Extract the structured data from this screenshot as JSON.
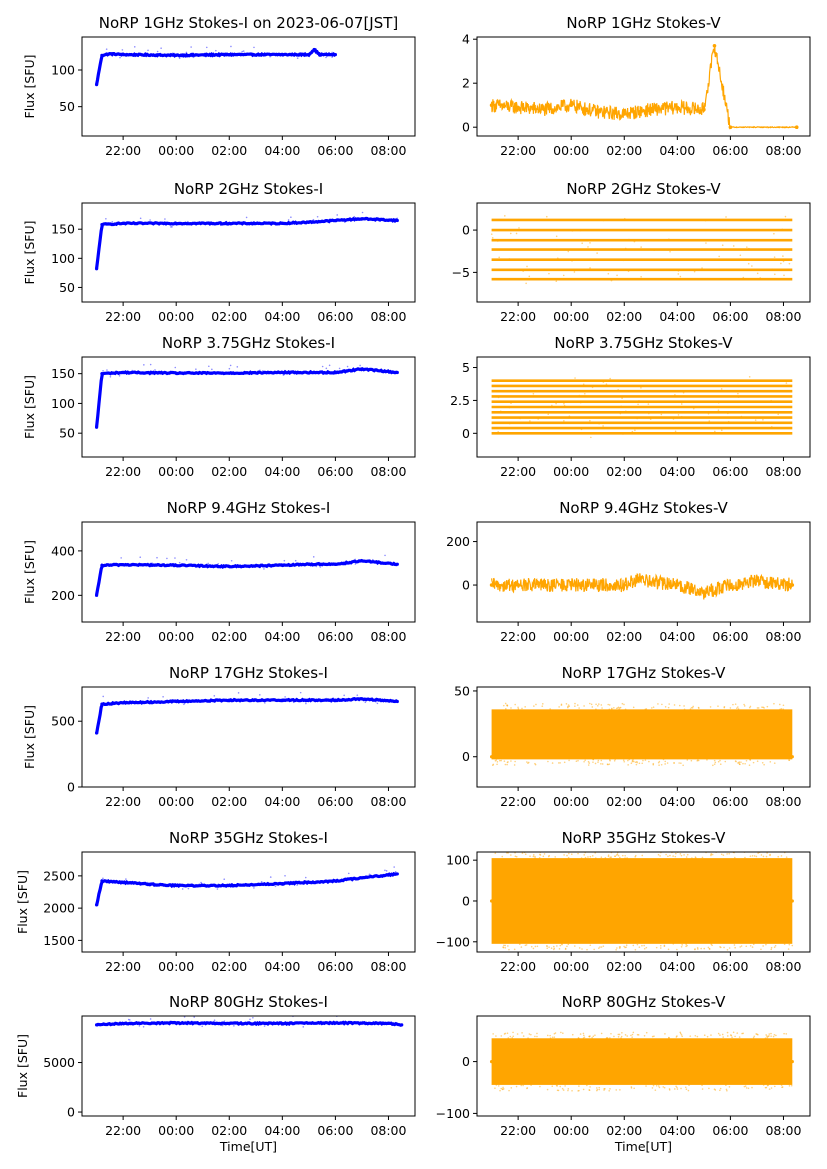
{
  "chart_data": [
    {
      "type": "line",
      "title": "NoRP 1GHz Stokes-I on 2023-06-07[JST]",
      "ylabel": "Flux [SFU]",
      "xlabel": "",
      "color": "#0000ff",
      "ylim": [
        10,
        145
      ],
      "yticks": [
        50,
        100
      ],
      "xticks": [
        "22:00",
        "00:00",
        "02:00",
        "04:00",
        "06:00",
        "08:00"
      ],
      "x": [
        "21:00",
        "21:12",
        "21:30",
        "22:00",
        "00:00",
        "02:00",
        "04:00",
        "05:00",
        "05:12",
        "05:24",
        "06:00"
      ],
      "values": [
        80,
        120,
        122,
        121,
        120,
        121,
        121,
        121,
        128,
        121,
        121
      ]
    },
    {
      "type": "scatter",
      "title": "NoRP 1GHz Stokes-V",
      "ylabel": "",
      "xlabel": "",
      "color": "#ffa500",
      "ylim": [
        -0.4,
        4.1
      ],
      "yticks": [
        0,
        2,
        4
      ],
      "xticks": [
        "22:00",
        "00:00",
        "02:00",
        "04:00",
        "06:00",
        "08:00"
      ],
      "x": [
        "21:00",
        "22:00",
        "23:00",
        "00:00",
        "01:00",
        "02:00",
        "03:00",
        "04:00",
        "05:00",
        "05:24",
        "06:00",
        "08:30"
      ],
      "values": [
        1.0,
        0.9,
        0.8,
        1.0,
        0.7,
        0.6,
        0.8,
        0.9,
        0.8,
        3.7,
        0.0,
        0.0
      ]
    },
    {
      "type": "line",
      "title": "NoRP 2GHz Stokes-I",
      "ylabel": "Flux [SFU]",
      "xlabel": "",
      "color": "#0000ff",
      "ylim": [
        25,
        195
      ],
      "yticks": [
        50,
        100,
        150
      ],
      "xticks": [
        "22:00",
        "00:00",
        "02:00",
        "04:00",
        "06:00",
        "08:00"
      ],
      "x": [
        "21:00",
        "21:12",
        "22:00",
        "00:00",
        "02:00",
        "04:00",
        "05:00",
        "06:00",
        "07:00",
        "08:20"
      ],
      "values": [
        82,
        158,
        160,
        160,
        160,
        160,
        162,
        165,
        168,
        165
      ]
    },
    {
      "type": "scatter",
      "title": "NoRP 2GHz Stokes-V",
      "ylabel": "",
      "xlabel": "",
      "color": "#ffa500",
      "ylim": [
        -8.5,
        3.2
      ],
      "yticks": [
        -5,
        0
      ],
      "xticks": [
        "22:00",
        "00:00",
        "02:00",
        "04:00",
        "06:00",
        "08:00"
      ],
      "levels": [
        1.2,
        0.0,
        -1.2,
        -2.3,
        -3.5,
        -4.7,
        -5.8
      ],
      "x": [
        "21:00",
        "08:20"
      ],
      "values": [
        1.2,
        -5.8
      ]
    },
    {
      "type": "line",
      "title": "NoRP 3.75GHz Stokes-I",
      "ylabel": "Flux [SFU]",
      "xlabel": "",
      "color": "#0000ff",
      "ylim": [
        10,
        178
      ],
      "yticks": [
        50,
        100,
        150
      ],
      "xticks": [
        "22:00",
        "00:00",
        "02:00",
        "04:00",
        "06:00",
        "08:00"
      ],
      "x": [
        "21:00",
        "21:12",
        "22:00",
        "00:00",
        "02:00",
        "04:00",
        "06:00",
        "07:00",
        "08:20"
      ],
      "values": [
        60,
        150,
        152,
        151,
        151,
        152,
        152,
        158,
        152
      ]
    },
    {
      "type": "scatter",
      "title": "NoRP 3.75GHz Stokes-V",
      "ylabel": "",
      "xlabel": "",
      "color": "#ffa500",
      "ylim": [
        -1.8,
        5.8
      ],
      "yticks": [
        0.0,
        2.5,
        5.0
      ],
      "xticks": [
        "22:00",
        "00:00",
        "02:00",
        "04:00",
        "06:00",
        "08:00"
      ],
      "levels": [
        0.0,
        0.4,
        0.8,
        1.2,
        1.6,
        2.0,
        2.4,
        2.8,
        3.2,
        3.6,
        4.0
      ],
      "x": [
        "21:00",
        "08:20"
      ],
      "values": [
        0.0,
        4.0
      ]
    },
    {
      "type": "line",
      "title": "NoRP 9.4GHz Stokes-I",
      "ylabel": "Flux [SFU]",
      "xlabel": "",
      "color": "#0000ff",
      "ylim": [
        80,
        530
      ],
      "yticks": [
        200,
        400
      ],
      "xticks": [
        "22:00",
        "00:00",
        "02:00",
        "04:00",
        "06:00",
        "08:00"
      ],
      "x": [
        "21:00",
        "21:12",
        "22:00",
        "00:00",
        "02:00",
        "04:00",
        "05:00",
        "06:00",
        "07:00",
        "08:20"
      ],
      "values": [
        200,
        335,
        338,
        335,
        330,
        335,
        340,
        340,
        355,
        340
      ]
    },
    {
      "type": "scatter",
      "title": "NoRP 9.4GHz Stokes-V",
      "ylabel": "",
      "xlabel": "",
      "color": "#ffa500",
      "ylim": [
        -170,
        290
      ],
      "yticks": [
        0,
        200
      ],
      "xticks": [
        "22:00",
        "00:00",
        "02:00",
        "04:00",
        "06:00",
        "08:00"
      ],
      "x": [
        "21:00",
        "22:00",
        "00:00",
        "02:00",
        "02:30",
        "04:00",
        "05:00",
        "06:00",
        "07:00",
        "08:20"
      ],
      "values": [
        0,
        0,
        0,
        0,
        25,
        0,
        -35,
        0,
        20,
        0
      ]
    },
    {
      "type": "line",
      "title": "NoRP 17GHz Stokes-I",
      "ylabel": "Flux [SFU]",
      "xlabel": "",
      "color": "#0000ff",
      "ylim": [
        0,
        760
      ],
      "yticks": [
        0,
        500
      ],
      "xticks": [
        "22:00",
        "00:00",
        "02:00",
        "04:00",
        "06:00",
        "08:00"
      ],
      "x": [
        "21:00",
        "21:12",
        "22:00",
        "00:00",
        "02:00",
        "04:00",
        "06:00",
        "07:00",
        "08:20"
      ],
      "values": [
        410,
        630,
        640,
        650,
        660,
        660,
        660,
        670,
        650
      ]
    },
    {
      "type": "scatter",
      "title": "NoRP 17GHz Stokes-V",
      "ylabel": "",
      "xlabel": "",
      "color": "#ffa500",
      "ylim": [
        -23,
        53
      ],
      "yticks": [
        0,
        50
      ],
      "xticks": [
        "22:00",
        "00:00",
        "02:00",
        "04:00",
        "06:00",
        "08:00"
      ],
      "band": [
        -2,
        36
      ],
      "x": [
        "21:00",
        "08:20"
      ],
      "values": [
        0,
        0
      ]
    },
    {
      "type": "line",
      "title": "NoRP 35GHz Stokes-I",
      "ylabel": "Flux [SFU]",
      "xlabel": "",
      "color": "#0000ff",
      "ylim": [
        1320,
        2870
      ],
      "yticks": [
        1500,
        2000,
        2500
      ],
      "xticks": [
        "22:00",
        "00:00",
        "02:00",
        "04:00",
        "06:00",
        "08:00"
      ],
      "x": [
        "21:00",
        "21:12",
        "22:00",
        "23:00",
        "00:00",
        "02:00",
        "04:00",
        "06:00",
        "07:00",
        "08:20"
      ],
      "values": [
        2050,
        2420,
        2400,
        2370,
        2350,
        2350,
        2380,
        2420,
        2470,
        2530
      ]
    },
    {
      "type": "scatter",
      "title": "NoRP 35GHz Stokes-V",
      "ylabel": "",
      "xlabel": "",
      "color": "#ffa500",
      "ylim": [
        -125,
        120
      ],
      "yticks": [
        -100,
        0,
        100
      ],
      "xticks": [
        "22:00",
        "00:00",
        "02:00",
        "04:00",
        "06:00",
        "08:00"
      ],
      "band": [
        -105,
        105
      ],
      "x": [
        "21:00",
        "08:20"
      ],
      "values": [
        0,
        0
      ]
    },
    {
      "type": "line",
      "title": "NoRP 80GHz Stokes-I",
      "ylabel": "Flux [SFU]",
      "xlabel": "Time[UT]",
      "color": "#0000ff",
      "ylim": [
        -400,
        9700
      ],
      "yticks": [
        0,
        5000
      ],
      "xticks": [
        "22:00",
        "00:00",
        "02:00",
        "04:00",
        "06:00",
        "08:00"
      ],
      "x": [
        "21:00",
        "22:00",
        "00:00",
        "02:00",
        "04:00",
        "06:00",
        "08:00",
        "08:30"
      ],
      "values": [
        8800,
        8950,
        9000,
        8950,
        8950,
        9000,
        8950,
        8800
      ]
    },
    {
      "type": "scatter",
      "title": "NoRP 80GHz Stokes-V",
      "ylabel": "",
      "xlabel": "Time[UT]",
      "color": "#ffa500",
      "ylim": [
        -105,
        88
      ],
      "yticks": [
        -100,
        0
      ],
      "xticks": [
        "22:00",
        "00:00",
        "02:00",
        "04:00",
        "06:00",
        "08:00"
      ],
      "band": [
        -45,
        45
      ],
      "x": [
        "21:00",
        "23:00",
        "01:00",
        "03:00",
        "05:00",
        "07:00",
        "08:20"
      ],
      "values": [
        0,
        -5,
        0,
        5,
        0,
        -5,
        0
      ]
    }
  ]
}
